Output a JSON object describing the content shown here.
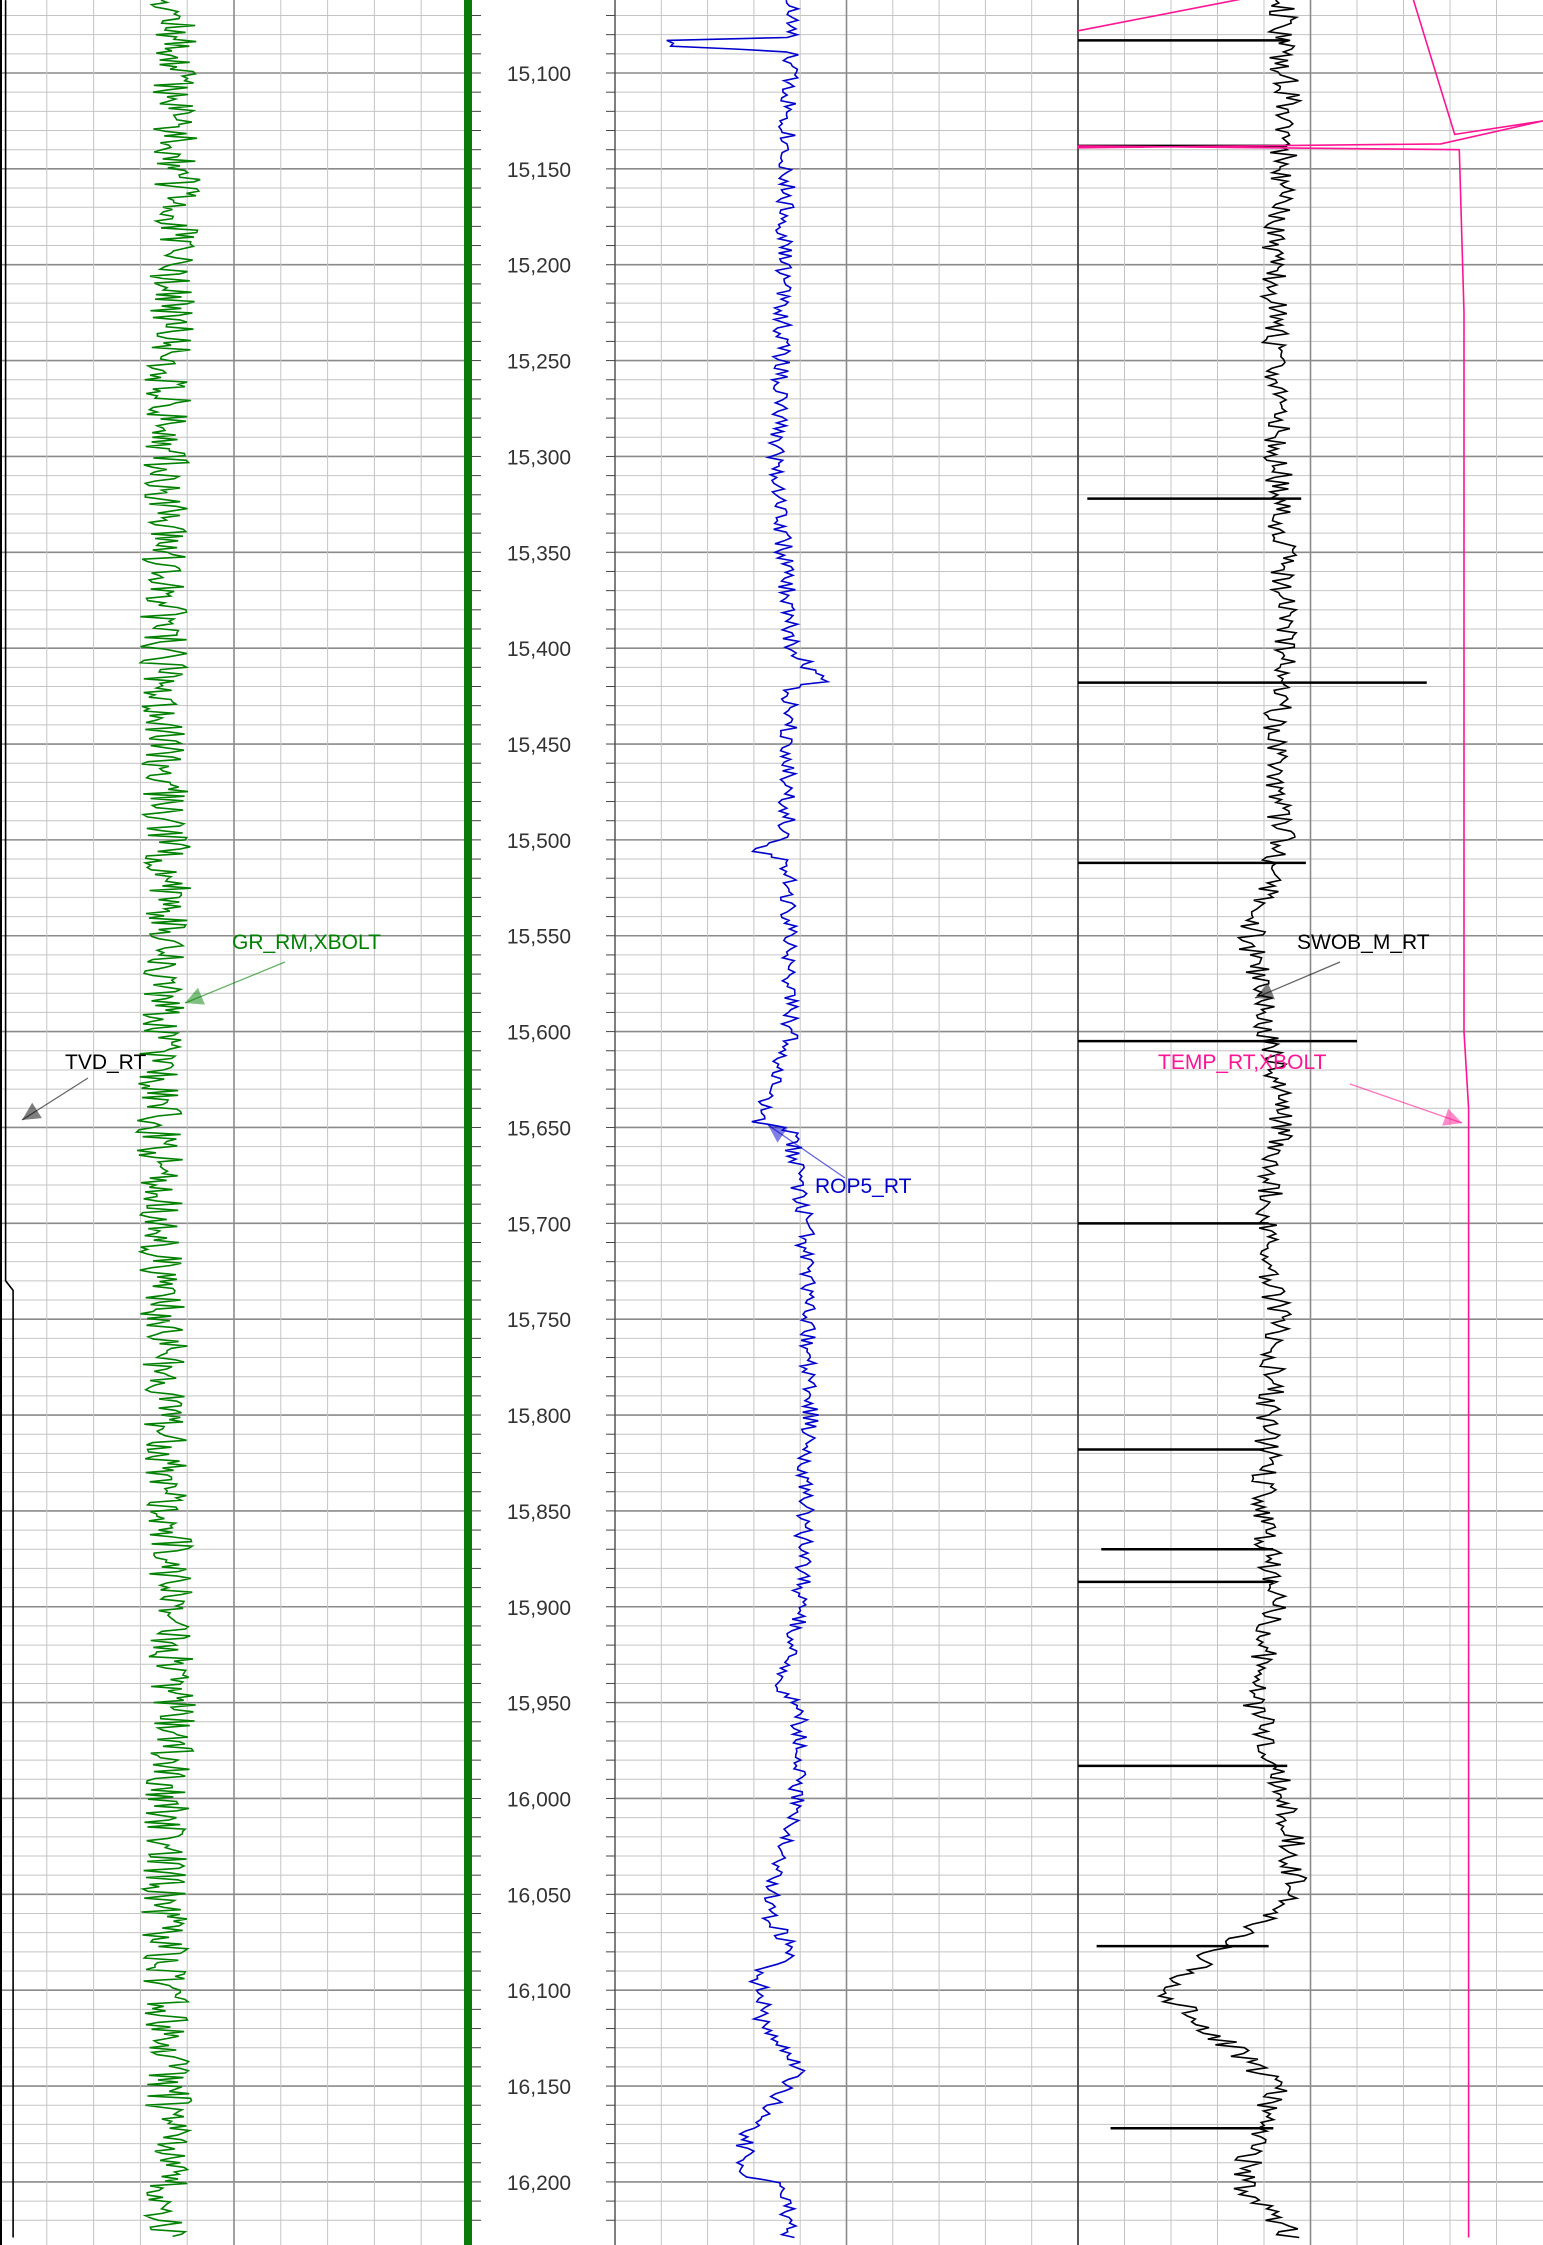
{
  "chart_data": {
    "type": "line",
    "title": "",
    "depth_axis": {
      "range": [
        15062,
        16229
      ],
      "ticks": [
        15100,
        15150,
        15200,
        15250,
        15300,
        15350,
        15400,
        15450,
        15500,
        15550,
        15600,
        15650,
        15700,
        15750,
        15800,
        15850,
        15900,
        15950,
        16000,
        16050,
        16100,
        16150,
        16200
      ],
      "tick_labels": [
        "15,100",
        "15,150",
        "15,200",
        "15,250",
        "15,300",
        "15,350",
        "15,400",
        "15,450",
        "15,500",
        "15,550",
        "15,600",
        "15,650",
        "15,700",
        "15,750",
        "15,800",
        "15,850",
        "15,900",
        "15,950",
        "16,000",
        "16,050",
        "16,100",
        "16,150",
        "16,200"
      ],
      "minor_step": 10
    },
    "grid": true,
    "series": [
      {
        "name": "TVD_RT",
        "track": 1,
        "color": "#000000",
        "x_range": [
          0,
          100
        ],
        "points": [
          [
            15062,
            1.2
          ],
          [
            15730,
            1.2
          ],
          [
            15735,
            2.8
          ],
          [
            16229,
            2.8
          ]
        ]
      },
      {
        "name": "GR_RM,XBOLT",
        "track": 1,
        "color": "#008000",
        "x_range": [
          0,
          100
        ],
        "center_profile": [
          [
            15062,
            37
          ],
          [
            15150,
            38
          ],
          [
            15250,
            36
          ],
          [
            15350,
            35
          ],
          [
            15450,
            35
          ],
          [
            15520,
            36
          ],
          [
            15560,
            36
          ],
          [
            15600,
            34
          ],
          [
            15650,
            34
          ],
          [
            15750,
            35
          ],
          [
            15850,
            36
          ],
          [
            15950,
            37
          ],
          [
            16050,
            35
          ],
          [
            16150,
            36
          ],
          [
            16229,
            36
          ]
        ],
        "noise_amplitude": 5
      },
      {
        "name": "ROP5_RT",
        "track": 2,
        "color": "#0000CC",
        "x_range": [
          0,
          100
        ],
        "profile": [
          [
            15062,
            38
          ],
          [
            15082,
            38
          ],
          [
            15083,
            11
          ],
          [
            15087,
            11
          ],
          [
            15088,
            38
          ],
          [
            15150,
            37
          ],
          [
            15250,
            36
          ],
          [
            15300,
            35
          ],
          [
            15400,
            38
          ],
          [
            15418,
            45
          ],
          [
            15420,
            38
          ],
          [
            15500,
            37
          ],
          [
            15505,
            29
          ],
          [
            15512,
            37
          ],
          [
            15600,
            38
          ],
          [
            15647,
            31
          ],
          [
            15652,
            38
          ],
          [
            15700,
            41
          ],
          [
            15800,
            42
          ],
          [
            15900,
            40
          ],
          [
            15945,
            36
          ],
          [
            15952,
            40
          ],
          [
            16000,
            39
          ],
          [
            16060,
            33
          ],
          [
            16080,
            39
          ],
          [
            16090,
            31
          ],
          [
            16120,
            32
          ],
          [
            16140,
            40
          ],
          [
            16178,
            28
          ],
          [
            16198,
            28
          ],
          [
            16200,
            36
          ],
          [
            16229,
            38
          ]
        ],
        "noise_amplitude": 2
      },
      {
        "name": "SWOB_M_RT",
        "track": 3,
        "color": "#000000",
        "x_range": [
          0,
          100
        ],
        "profile": [
          [
            15062,
            44
          ],
          [
            15090,
            44
          ],
          [
            15120,
            45
          ],
          [
            15200,
            42
          ],
          [
            15300,
            43
          ],
          [
            15400,
            45
          ],
          [
            15450,
            42
          ],
          [
            15500,
            44
          ],
          [
            15550,
            37
          ],
          [
            15600,
            41
          ],
          [
            15650,
            44
          ],
          [
            15700,
            40
          ],
          [
            15750,
            43
          ],
          [
            15800,
            41
          ],
          [
            15850,
            40
          ],
          [
            15900,
            42
          ],
          [
            15950,
            38
          ],
          [
            16000,
            45
          ],
          [
            16050,
            47
          ],
          [
            16100,
            18
          ],
          [
            16150,
            43
          ],
          [
            16200,
            35
          ],
          [
            16229,
            46
          ]
        ],
        "noise_amplitude": 3,
        "spikes": [
          [
            15083,
            0,
            45
          ],
          [
            15138,
            0,
            45
          ],
          [
            15322,
            2,
            48
          ],
          [
            15418,
            0,
            75
          ],
          [
            15512,
            0,
            49
          ],
          [
            15605,
            0,
            60
          ],
          [
            15700,
            0,
            41
          ],
          [
            15818,
            0,
            40
          ],
          [
            15870,
            5,
            42
          ],
          [
            15887,
            0,
            42
          ],
          [
            15983,
            0,
            45
          ],
          [
            16077,
            4,
            41
          ],
          [
            16172,
            7,
            42
          ]
        ]
      },
      {
        "name": "TEMP_RT,XBOLT",
        "track": 3,
        "color": "#FF1493",
        "x_range": [
          0,
          100
        ],
        "profile": [
          [
            15078,
            0
          ],
          [
            15045,
            70
          ],
          [
            15132,
            81
          ],
          [
            15125,
            100
          ],
          [
            15137,
            78
          ],
          [
            15139,
            0
          ],
          [
            15138,
            0
          ],
          [
            15140,
            82
          ],
          [
            15225,
            83
          ],
          [
            15600,
            83
          ],
          [
            15640,
            84
          ],
          [
            16229,
            84
          ]
        ]
      }
    ],
    "curve_labels": [
      {
        "text": "TVD_RT",
        "color": "#000000"
      },
      {
        "text": "GR_RM,XBOLT",
        "color": "#008000"
      },
      {
        "text": "ROP5_RT",
        "color": "#0000CC"
      },
      {
        "text": "SWOB_M_RT",
        "color": "#000000"
      },
      {
        "text": "TEMP_RT,XBOLT",
        "color": "#FF1493"
      }
    ],
    "legend": "inline"
  }
}
